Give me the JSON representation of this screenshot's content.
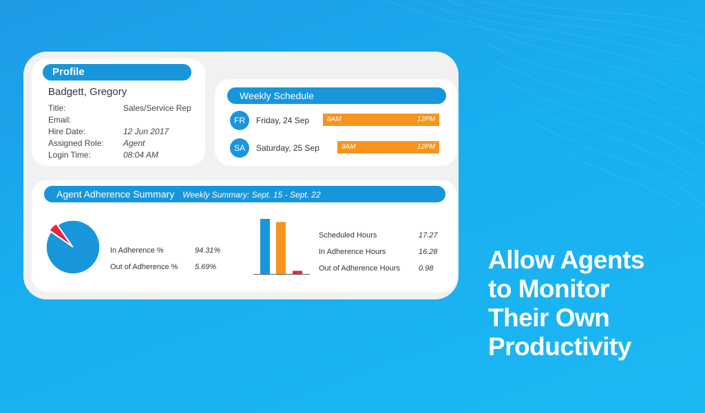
{
  "profile": {
    "header": "Profile",
    "name": "Badgett, Gregory",
    "rows": [
      {
        "label": "Title:",
        "value": "Sales/Service Rep"
      },
      {
        "label": "Email:",
        "value": ""
      },
      {
        "label": "Hire Date:",
        "value": "12 Jun 2017"
      },
      {
        "label": "Assigned Role:",
        "value": "Agent"
      },
      {
        "label": "Login Time:",
        "value": "08:04 AM"
      }
    ]
  },
  "schedule": {
    "header": "Weekly Schedule",
    "days": [
      {
        "abbr": "FR",
        "label": "Friday, 24 Sep",
        "start": "8AM",
        "end": "12PM"
      },
      {
        "abbr": "SA",
        "label": "Saturday, 25 Sep",
        "start": "9AM",
        "end": "12PM"
      }
    ]
  },
  "adherence": {
    "header": "Agent Adherence Summary",
    "subheader": "Weekly Summary: Sept. 15 - Sept. 22",
    "pie_rows": [
      {
        "label": "In Adherence %",
        "value": "94.31%"
      },
      {
        "label": "Out of Adherence %",
        "value": "5.69%"
      }
    ],
    "hours_rows": [
      {
        "label": "Scheduled Hours",
        "value": "17.27"
      },
      {
        "label": "In Adherence Hours",
        "value": "16.28"
      },
      {
        "label": "Out of Adherence Hours",
        "value": "0.98"
      }
    ]
  },
  "chart_data": [
    {
      "type": "pie",
      "categories": [
        "In Adherence %",
        "Out of Adherence %"
      ],
      "values": [
        94.31,
        5.69
      ],
      "colors": [
        "#1896db",
        "#e8263f"
      ]
    },
    {
      "type": "bar",
      "categories": [
        "Scheduled Hours",
        "In Adherence Hours",
        "Out of Adherence Hours"
      ],
      "values": [
        17.27,
        16.28,
        0.98
      ],
      "colors": [
        "#1896db",
        "#f7941d",
        "#e8263f"
      ]
    }
  ],
  "headline": {
    "lines": [
      "Allow Agents",
      "to Monitor",
      "Their Own",
      "Productivity"
    ]
  },
  "colors": {
    "accent": "#1896db",
    "orange": "#f7941d",
    "red": "#e8263f"
  }
}
